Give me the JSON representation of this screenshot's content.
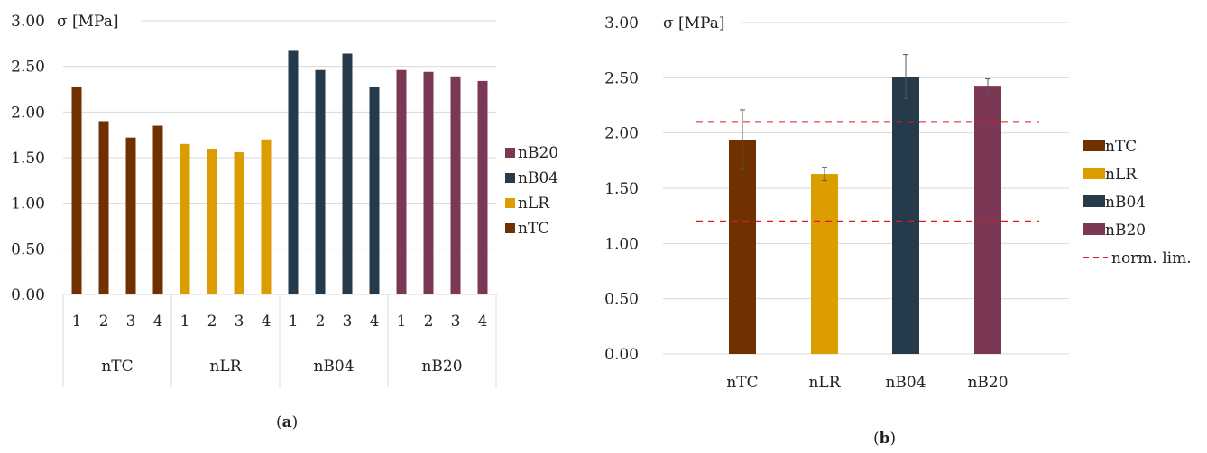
{
  "figure": {
    "caption_a": "a",
    "caption_b": "b"
  },
  "colors": {
    "nTC": "#713000",
    "nLR": "#DB9D00",
    "nB04": "#253A4B",
    "nB20": "#7B3753",
    "norm_lim": "#E01A1A",
    "grid": "#D9D9D9",
    "error_bar": "#555555"
  },
  "chart_data": [
    {
      "type": "bar",
      "title": "",
      "ylabel": "σ [MPa]",
      "xlabel": "",
      "ylim": [
        0,
        3
      ],
      "ytick_step": 0.5,
      "ytick_labels": [
        "0.00",
        "0.50",
        "1.00",
        "1.50",
        "2.00",
        "2.50",
        "3.00"
      ],
      "grid": true,
      "legend_position": "right",
      "legend": [
        "nB20",
        "nB04",
        "nLR",
        "nTC"
      ],
      "groups": [
        {
          "name": "nTC",
          "categories": [
            "1",
            "2",
            "3",
            "4"
          ],
          "values": [
            2.27,
            1.9,
            1.72,
            1.85
          ]
        },
        {
          "name": "nLR",
          "categories": [
            "1",
            "2",
            "3",
            "4"
          ],
          "values": [
            1.65,
            1.59,
            1.56,
            1.7
          ]
        },
        {
          "name": "nB04",
          "categories": [
            "1",
            "2",
            "3",
            "4"
          ],
          "values": [
            2.67,
            2.46,
            2.64,
            2.27
          ]
        },
        {
          "name": "nB20",
          "categories": [
            "1",
            "2",
            "3",
            "4"
          ],
          "values": [
            2.46,
            2.44,
            2.39,
            2.34
          ]
        }
      ]
    },
    {
      "type": "bar",
      "title": "",
      "ylabel": "σ [MPa]",
      "xlabel": "",
      "ylim": [
        0,
        3
      ],
      "ytick_step": 0.5,
      "ytick_labels": [
        "0.00",
        "0.50",
        "1.00",
        "1.50",
        "2.00",
        "2.50",
        "3.00"
      ],
      "grid": true,
      "legend_position": "right",
      "categories": [
        "nTC",
        "nLR",
        "nB04",
        "nB20"
      ],
      "values": [
        1.94,
        1.63,
        2.51,
        2.42
      ],
      "error": [
        0.27,
        0.06,
        0.2,
        0.07
      ],
      "legend": [
        "nTC",
        "nLR",
        "nB04",
        "nB20",
        "norm. lim."
      ],
      "reference_lines": [
        {
          "name": "norm. lim.",
          "y": 2.1
        },
        {
          "name": "norm. lim.",
          "y": 1.2
        }
      ]
    }
  ]
}
